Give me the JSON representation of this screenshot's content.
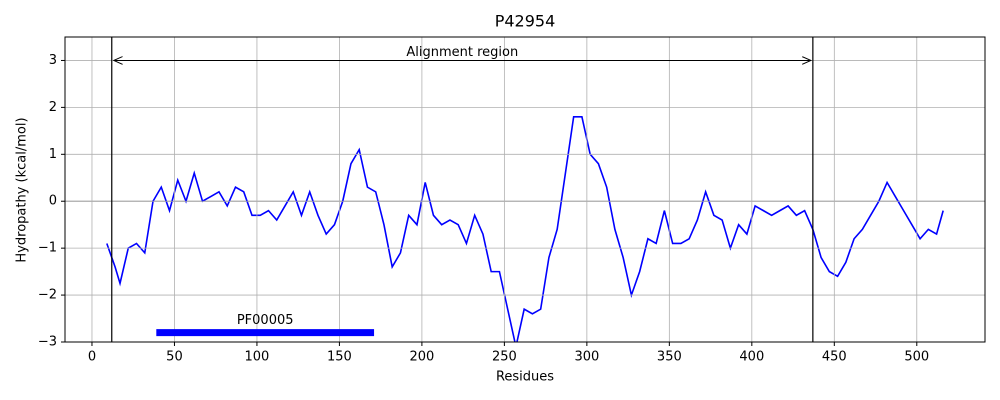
{
  "chart_data": {
    "type": "line",
    "title": "P42954",
    "xlabel": "Residues",
    "ylabel": "Hydropathy (kcal/mol)",
    "x": [
      9,
      14,
      17,
      22,
      27,
      32,
      37,
      42,
      47,
      52,
      57,
      62,
      67,
      72,
      77,
      82,
      87,
      92,
      97,
      102,
      107,
      112,
      117,
      122,
      127,
      132,
      137,
      142,
      147,
      152,
      157,
      162,
      167,
      172,
      177,
      182,
      187,
      192,
      197,
      202,
      207,
      212,
      217,
      222,
      227,
      232,
      237,
      242,
      247,
      252,
      257,
      262,
      267,
      272,
      277,
      282,
      287,
      292,
      297,
      302,
      307,
      312,
      317,
      322,
      327,
      332,
      337,
      342,
      347,
      352,
      357,
      362,
      367,
      372,
      377,
      382,
      387,
      392,
      397,
      402,
      407,
      412,
      417,
      422,
      427,
      432,
      437,
      442,
      447,
      452,
      457,
      462,
      467,
      472,
      477,
      482,
      487,
      492,
      497,
      502,
      507,
      512,
      516
    ],
    "values": [
      -0.9,
      -1.4,
      -1.75,
      -1.0,
      -0.9,
      -1.1,
      0.0,
      0.3,
      -0.2,
      0.45,
      0.0,
      0.6,
      0.0,
      0.1,
      0.2,
      -0.1,
      0.3,
      0.2,
      -0.3,
      -0.3,
      -0.2,
      -0.4,
      -0.1,
      0.2,
      -0.3,
      0.2,
      -0.3,
      -0.7,
      -0.5,
      0.0,
      0.8,
      1.1,
      0.3,
      0.2,
      -0.5,
      -1.4,
      -1.1,
      -0.3,
      -0.5,
      0.4,
      -0.3,
      -0.5,
      -0.4,
      -0.5,
      -0.9,
      -0.3,
      -0.7,
      -1.5,
      -1.5,
      -2.3,
      -3.1,
      -2.3,
      -2.4,
      -2.3,
      -1.2,
      -0.6,
      0.6,
      1.8,
      1.8,
      1.0,
      0.8,
      0.3,
      -0.6,
      -1.2,
      -2.0,
      -1.5,
      -0.8,
      -0.9,
      -0.2,
      -0.9,
      -0.9,
      -0.8,
      -0.4,
      0.2,
      -0.3,
      -0.4,
      -1.0,
      -0.5,
      -0.7,
      -0.1,
      -0.2,
      -0.3,
      -0.2,
      -0.1,
      -0.3,
      -0.2,
      -0.6,
      -1.2,
      -1.5,
      -1.6,
      -1.3,
      -0.8,
      -0.6,
      -0.3,
      0.0,
      0.4,
      0.1,
      -0.2,
      -0.5,
      -0.8,
      -0.6,
      -0.7,
      -0.2
    ],
    "color": "#0000ff",
    "xlim": [
      -16.35,
      541.35
    ],
    "ylim": [
      -3,
      3.5
    ],
    "xticks": [
      0,
      50,
      100,
      150,
      200,
      250,
      300,
      350,
      400,
      450,
      500
    ],
    "yticks": [
      {
        "value": -3,
        "label": "−3"
      },
      {
        "value": -2,
        "label": "−2"
      },
      {
        "value": -1,
        "label": "−1"
      },
      0,
      1,
      2,
      3
    ],
    "grid": true,
    "region": {
      "label": "Alignment region",
      "start": 12,
      "end": 437,
      "y": 3
    },
    "domain": {
      "label": "PF00005",
      "start": 39,
      "end": 171,
      "y": -2.8,
      "color": "#0000ff"
    }
  }
}
